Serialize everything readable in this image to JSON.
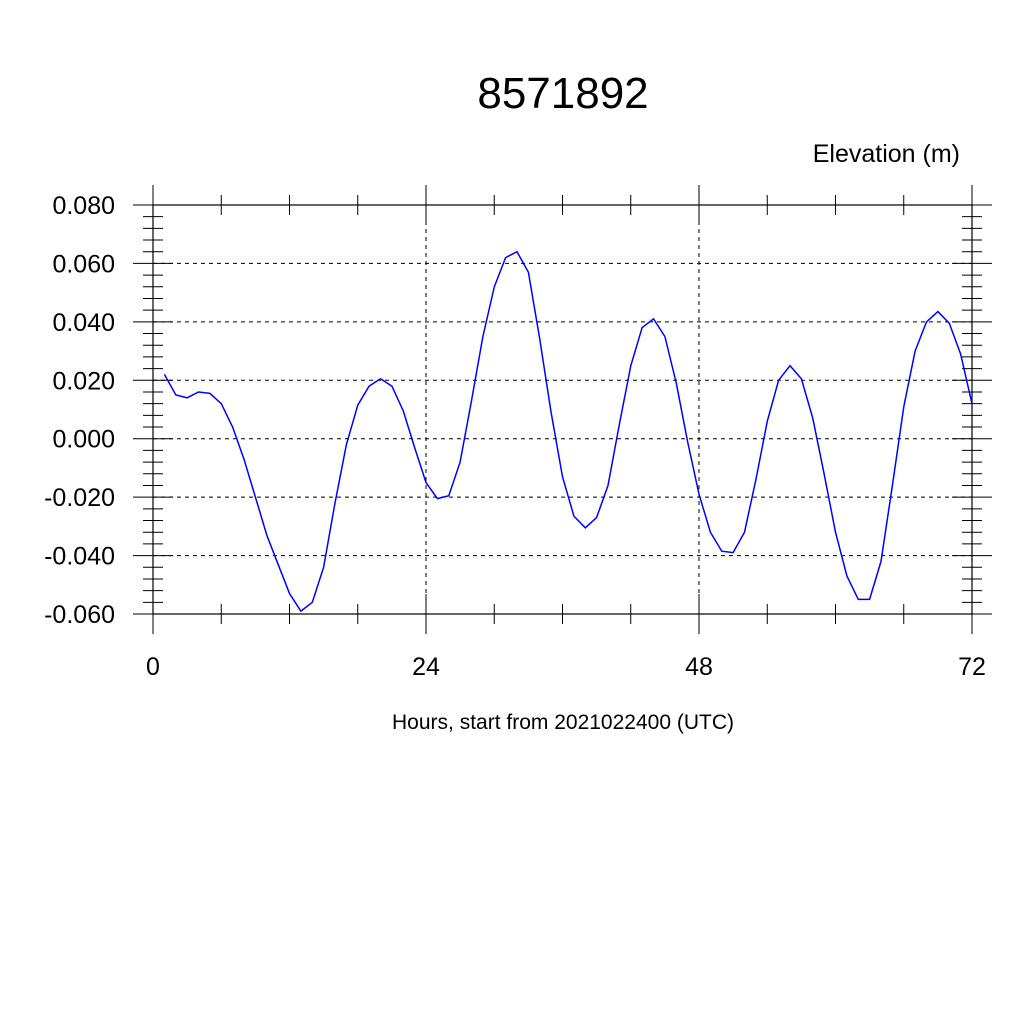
{
  "chart_data": {
    "type": "line",
    "title": "8571892",
    "ylabel": "Elevation (m)",
    "xlabel": "Hours, start from 2021022400 (UTC)",
    "xlim": [
      0,
      72
    ],
    "ylim": [
      -0.06,
      0.08
    ],
    "x_ticks": [
      0,
      24,
      48,
      72
    ],
    "x_tick_labels": [
      "0",
      "24",
      "48",
      "72"
    ],
    "y_ticks": [
      0.08,
      0.06,
      0.04,
      0.02,
      0.0,
      -0.02,
      -0.04,
      -0.06
    ],
    "y_tick_labels": [
      "0.080",
      "0.060",
      "0.040",
      "0.020",
      "0.000",
      "-0.020",
      "-0.040",
      "-0.060"
    ],
    "grid": true,
    "series": [
      {
        "color": "#0000ff",
        "x": [
          1,
          2,
          3,
          4,
          5,
          6,
          7,
          8,
          9,
          10,
          11,
          12,
          13,
          14,
          15,
          16,
          17,
          18,
          19,
          20,
          21,
          22,
          23,
          24,
          25,
          26,
          27,
          28,
          29,
          30,
          31,
          32,
          33,
          34,
          35,
          36,
          37,
          38,
          39,
          40,
          41,
          42,
          43,
          44,
          45,
          46,
          47,
          48,
          49,
          50,
          51,
          52,
          53,
          54,
          55,
          56,
          57,
          58,
          59,
          60,
          61,
          62,
          63,
          64,
          65,
          66,
          67,
          68,
          69,
          70,
          71,
          72
        ],
        "values": [
          0.022,
          0.015,
          0.014,
          0.016,
          0.0155,
          0.012,
          0.004,
          -0.007,
          -0.02,
          -0.033,
          -0.043,
          -0.053,
          -0.059,
          -0.056,
          -0.044,
          -0.022,
          -0.002,
          0.0115,
          0.018,
          0.0205,
          0.018,
          0.0095,
          -0.003,
          -0.015,
          -0.0205,
          -0.0195,
          -0.008,
          0.013,
          0.035,
          0.052,
          0.062,
          0.064,
          0.057,
          0.034,
          0.009,
          -0.013,
          -0.0265,
          -0.0305,
          -0.027,
          -0.016,
          0.005,
          0.025,
          0.038,
          0.041,
          0.035,
          0.019,
          -0.001,
          -0.019,
          -0.032,
          -0.0385,
          -0.039,
          -0.032,
          -0.014,
          0.006,
          0.02,
          0.025,
          0.0205,
          0.007,
          -0.012,
          -0.032,
          -0.047,
          -0.055,
          -0.055,
          -0.042,
          -0.016,
          0.011,
          0.03,
          0.04,
          0.0435,
          0.0395,
          0.029,
          0.012
        ]
      }
    ]
  }
}
